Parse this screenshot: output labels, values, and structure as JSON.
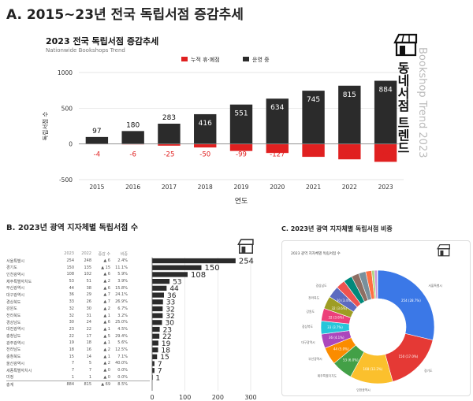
{
  "section_a": {
    "title": "A. 2015~23년 전국 독립서점 증감추세"
  },
  "section_b": {
    "title": "B. 2023년 광역 지자체별 독립서점 수"
  },
  "section_c": {
    "title": "C. 2023년 광역 지자체별 독립서점 비중"
  },
  "brand": {
    "name": "동네서점 트렌드",
    "english": "Bookshop Trend 2023"
  },
  "table_b": {
    "headers": [
      "",
      "2023",
      "2022",
      "증감 수",
      "비중"
    ],
    "total": {
      "name": "총계",
      "v2023": "884",
      "v2022": "815",
      "chg": "▲ 69",
      "pct": "8.5%"
    }
  },
  "chart_data": [
    {
      "type": "bar",
      "title": "2023 전국 독립서점 증감추세",
      "subtitle": "Nationwide Bookshops Trend",
      "categories": [
        "2015",
        "2016",
        "2017",
        "2018",
        "2019",
        "2020",
        "2021",
        "2022",
        "2023"
      ],
      "series": [
        {
          "name": "누적 휴·폐점",
          "color": "#e02020",
          "values": [
            -4,
            -6,
            -25,
            -50,
            -99,
            -127,
            -181,
            -216,
            -251
          ]
        },
        {
          "name": "운영 중",
          "color": "#2b2b2b",
          "values": [
            97,
            180,
            283,
            416,
            551,
            634,
            745,
            815,
            884
          ]
        }
      ],
      "xlabel": "연도",
      "ylabel": "독립서점 수",
      "ylim": [
        -500,
        1000
      ],
      "yticks": [
        -500,
        0,
        500,
        1000
      ],
      "legend": "top"
    },
    {
      "type": "bar",
      "orientation": "horizontal",
      "categories": [
        "서울특별시",
        "경기도",
        "인천광역시",
        "제주특별자치도",
        "부산광역시",
        "대구광역시",
        "경상북도",
        "강원도",
        "전라북도",
        "경상남도",
        "대전광역시",
        "충청남도",
        "광주광역시",
        "전라남도",
        "충청북도",
        "울산광역시",
        "세종특별자치시",
        "미정"
      ],
      "values": [
        254,
        150,
        108,
        53,
        44,
        36,
        33,
        32,
        32,
        30,
        23,
        22,
        19,
        18,
        15,
        7,
        7,
        1
      ],
      "values_2022": [
        248,
        135,
        102,
        51,
        38,
        29,
        26,
        30,
        31,
        24,
        22,
        17,
        18,
        16,
        14,
        5,
        7,
        1
      ],
      "changes": [
        "▲ 6",
        "▲ 15",
        "▲ 6",
        "▲ 2",
        "▲ 6",
        "▲ 7",
        "▲ 7",
        "▲ 2",
        "▲ 1",
        "▲ 6",
        "▲ 1",
        "▲ 5",
        "▲ 1",
        "▲ 2",
        "▲ 1",
        "▲ 2",
        "▲ 0",
        "▲ 0"
      ],
      "shares": [
        "2.4%",
        "11.1%",
        "5.9%",
        "3.9%",
        "15.8%",
        "24.1%",
        "26.9%",
        "6.7%",
        "3.2%",
        "25.0%",
        "4.5%",
        "29.4%",
        "5.6%",
        "12.5%",
        "7.1%",
        "40.0%",
        "0.0%",
        "0.0%"
      ],
      "xlabel": "독립서점 수",
      "xlim": [
        0,
        300
      ],
      "xticks": [
        0,
        100,
        200,
        300
      ]
    },
    {
      "type": "pie",
      "title": "2023 광역 지자체별 독립서점 수",
      "labels": [
        "서울특별시",
        "경기도",
        "인천광역시",
        "제주특별자치도",
        "부산광역시",
        "대구광역시",
        "경상북도",
        "강원도",
        "전라북도",
        "경상남도",
        "대전광역시",
        "충청남도",
        "광주광역시",
        "전라남도",
        "충청북도",
        "울산광역시",
        "세종특별자치시",
        "미정"
      ],
      "values": [
        254,
        150,
        108,
        53,
        44,
        36,
        33,
        32,
        32,
        30,
        23,
        22,
        19,
        18,
        15,
        7,
        7,
        1
      ],
      "slice_labels": [
        "254 (28.7%)",
        "150 (17.0%)",
        "108 (12.2%)",
        "53 (6.0%)",
        "44 (5.0%)",
        "36 (4.1%)",
        "33 (3.7%)",
        "32 (3.6%)",
        "32 (3.6%)",
        "30 (3.4%)",
        "",
        "",
        "",
        "",
        "",
        "",
        "",
        ""
      ],
      "colors": [
        "#3b78e7",
        "#e53935",
        "#fbc02d",
        "#43a047",
        "#fb8c00",
        "#ab47bc",
        "#26c6da",
        "#ec407a",
        "#9e9d24",
        "#5c6bc0",
        "#ef5350",
        "#00897b",
        "#8d6e63",
        "#78909c",
        "#ff7043",
        "#aed581",
        "#ce93d8",
        "#90a4ae"
      ],
      "donut": true
    }
  ]
}
